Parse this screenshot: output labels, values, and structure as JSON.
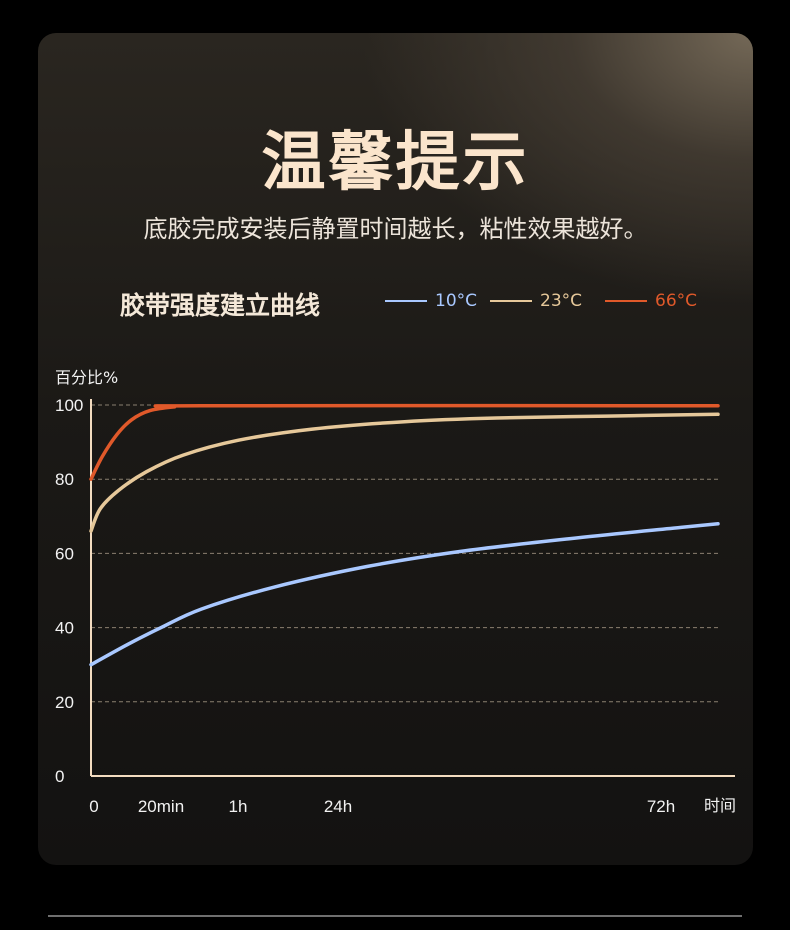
{
  "header": {
    "title": "温馨提示",
    "subtitle": "底胶完成安装后静置时间越长，粘性效果越好。"
  },
  "chart_data": {
    "type": "line",
    "title": "胶带强度建立曲线",
    "ylabel": "百分比%",
    "xlabel": "时间",
    "ylim": [
      0,
      100
    ],
    "y_ticks": [
      "0",
      "20",
      "40",
      "60",
      "80",
      "100"
    ],
    "x_ticks": [
      "0",
      "20min",
      "1h",
      "24h",
      "72h"
    ],
    "grid": true,
    "legend": "top",
    "series": [
      {
        "name": "10°C",
        "color": "#a9c8ff",
        "points": [
          [
            0,
            30
          ],
          [
            20,
            35.5
          ],
          [
            38,
            40
          ],
          [
            60,
            45
          ],
          [
            100,
            51
          ],
          [
            150,
            56.5
          ],
          [
            200,
            60.5
          ],
          [
            260,
            64
          ],
          [
            320,
            67
          ],
          [
            340,
            68
          ]
        ]
      },
      {
        "name": "23°C",
        "color": "#e6c89a",
        "points": [
          [
            0,
            66
          ],
          [
            5,
            72
          ],
          [
            15,
            77
          ],
          [
            30,
            82
          ],
          [
            50,
            86.5
          ],
          [
            80,
            90.5
          ],
          [
            120,
            93.5
          ],
          [
            170,
            95.5
          ],
          [
            220,
            96.5
          ],
          [
            280,
            97
          ],
          [
            340,
            97.5
          ]
        ]
      },
      {
        "name": "66°C",
        "color": "#e0592a",
        "points": [
          [
            0,
            80
          ],
          [
            6,
            86
          ],
          [
            14,
            92
          ],
          [
            22,
            96
          ],
          [
            32,
            98.5
          ],
          [
            45,
            99.5
          ],
          [
            60,
            99.8
          ],
          [
            340,
            99.8
          ]
        ]
      }
    ]
  }
}
